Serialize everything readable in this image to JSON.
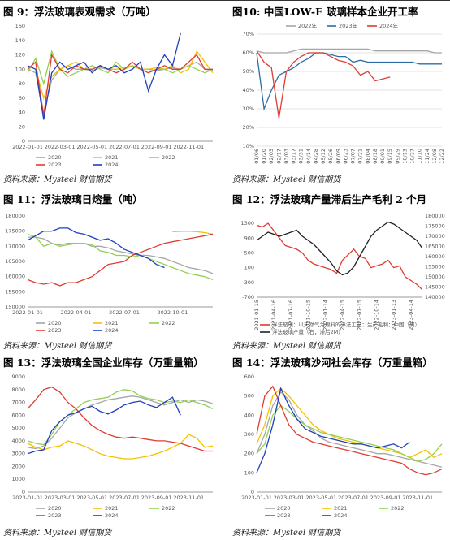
{
  "chart_data": [
    {
      "type": "line",
      "title": "图 9：浮法玻璃表观需求（万吨）",
      "source": "资料来源：Mysteel 财信期货",
      "categories": [
        "2022-01-01",
        null,
        null,
        null,
        "2022-03-01",
        null,
        null,
        null,
        "2022-05-01",
        null,
        null,
        null,
        "2022-07-01",
        null,
        null,
        null,
        "2022-09-01",
        null,
        null,
        null,
        "2022-11-01",
        null,
        null,
        null
      ],
      "ylim": [
        0,
        160
      ],
      "yticks": [
        0,
        20,
        40,
        60,
        80,
        100,
        120,
        140,
        160
      ],
      "grid": false,
      "legend": "bottom",
      "series": [
        {
          "name": "2020",
          "color": "#a6a6a6",
          "values": [
            100,
            95,
            40,
            85,
            100,
            105,
            100,
            100,
            98,
            102,
            100,
            95,
            100,
            105,
            100,
            100,
            98,
            100,
            102,
            100,
            105,
            110,
            100,
            98
          ]
        },
        {
          "name": "2021",
          "color": "#f2c200",
          "values": [
            105,
            100,
            60,
            90,
            100,
            105,
            110,
            100,
            100,
            105,
            100,
            100,
            102,
            105,
            100,
            100,
            102,
            100,
            105,
            95,
            100,
            125,
            110,
            95
          ]
        },
        {
          "name": "2022",
          "color": "#92d050",
          "values": [
            95,
            115,
            80,
            125,
            100,
            90,
            95,
            100,
            105,
            100,
            95,
            110,
            100,
            105,
            100,
            95,
            100,
            100,
            95,
            100,
            105,
            100,
            95,
            100
          ]
        },
        {
          "name": "2023",
          "color": "#e03c31",
          "values": [
            100,
            110,
            35,
            120,
            100,
            95,
            105,
            100,
            100,
            105,
            100,
            95,
            100,
            110,
            100,
            95,
            100,
            105,
            100,
            100,
            110,
            120,
            100,
            100
          ]
        },
        {
          "name": "2024",
          "color": "#1f3fbf",
          "values": [
            105,
            100,
            30,
            95,
            110,
            100,
            105,
            110,
            95,
            105,
            100,
            105,
            95,
            100,
            110,
            70,
            100,
            120,
            105,
            150,
            null,
            null,
            null,
            null
          ]
        }
      ]
    },
    {
      "type": "line",
      "title": "图10: 中国LOW-E 玻璃样本企业开工率",
      "source": "资料来源：Mysteel 财信期货",
      "categories": [
        "01/06",
        "01/20",
        "02/03",
        "02/17",
        "03/03",
        "03/17",
        "03/31",
        "04/14",
        "04/28",
        "05/12",
        "05/26",
        "06/09",
        "06/23",
        "07/07",
        "07/21",
        "08/04",
        "08/18",
        "09/01",
        "09/15",
        "09/29",
        "10/13",
        "10/27",
        "11/10",
        "11/24",
        "12/08",
        "12/22"
      ],
      "rotated_xticks": true,
      "ylim": [
        10,
        70
      ],
      "yticks": [
        {
          "value": 10,
          "label": "10%"
        },
        {
          "value": 20,
          "label": "20%"
        },
        {
          "value": 30,
          "label": "30%"
        },
        {
          "value": 40,
          "label": "40%"
        },
        {
          "value": 50,
          "label": "50%"
        },
        {
          "value": 60,
          "label": "60%"
        },
        {
          "value": 70,
          "label": "70%"
        }
      ],
      "grid": true,
      "legend": "top",
      "series": [
        {
          "name": "2022年",
          "color": "#a6a6a6",
          "values": [
            61,
            60,
            60,
            60,
            60,
            61,
            62,
            62,
            62,
            62,
            62,
            62,
            62,
            62,
            62,
            62,
            61,
            61,
            61,
            61,
            61,
            61,
            61,
            61,
            60,
            60
          ]
        },
        {
          "name": "2023年",
          "color": "#2e6da4",
          "values": [
            60,
            30,
            40,
            48,
            50,
            52,
            55,
            57,
            60,
            60,
            59,
            58,
            58,
            55,
            56,
            55,
            55,
            55,
            55,
            55,
            55,
            55,
            54,
            54,
            54,
            54
          ]
        },
        {
          "name": "2024年",
          "color": "#e03c31",
          "values": [
            61,
            55,
            52,
            25,
            50,
            55,
            58,
            60,
            60,
            60,
            58,
            56,
            55,
            53,
            48,
            50,
            45,
            46,
            47,
            null,
            null,
            null,
            null,
            null,
            null,
            null
          ]
        }
      ]
    },
    {
      "type": "line",
      "title": "图 11：浮法玻璃日熔量（吨）",
      "source": "资料来源：Mysteel 财信期货",
      "categories": [
        "2022-01-01",
        null,
        null,
        null,
        null,
        null,
        "2022-04-01",
        null,
        null,
        null,
        null,
        null,
        "2022-07-01",
        null,
        null,
        null,
        null,
        null,
        "2022-10-01",
        null,
        null,
        null,
        null,
        null
      ],
      "ylim": [
        150000,
        180000
      ],
      "yticks": [
        150000,
        155000,
        160000,
        165000,
        170000,
        175000,
        180000
      ],
      "grid": false,
      "legend": "bottom",
      "series": [
        {
          "name": "2020",
          "color": "#a6a6a6",
          "values": [
            173000,
            173000,
            172500,
            171000,
            170500,
            171000,
            171000,
            171000,
            170000,
            170000,
            169500,
            168500,
            168000,
            167500,
            167000,
            167000,
            166500,
            166000,
            165000,
            164000,
            163000,
            162500,
            162000,
            161000
          ]
        },
        {
          "name": "2021",
          "color": "#f2c200",
          "values": [
            null,
            null,
            null,
            null,
            null,
            null,
            null,
            null,
            null,
            null,
            null,
            null,
            null,
            null,
            null,
            null,
            null,
            null,
            174800,
            174900,
            175000,
            174800,
            174500,
            174000
          ]
        },
        {
          "name": "2022",
          "color": "#92d050",
          "values": [
            174000,
            173000,
            170000,
            171000,
            170000,
            170500,
            171000,
            171000,
            170500,
            168500,
            168000,
            167000,
            167000,
            166500,
            167000,
            166000,
            165000,
            164000,
            163000,
            162000,
            161000,
            160500,
            160000,
            159000
          ]
        },
        {
          "name": "2023",
          "color": "#e03c31",
          "values": [
            159000,
            158000,
            157500,
            158000,
            157000,
            158000,
            158000,
            159000,
            160000,
            162000,
            164000,
            164500,
            165000,
            167000,
            168000,
            169000,
            170000,
            171000,
            171500,
            172000,
            172500,
            173000,
            173500,
            174000
          ]
        },
        {
          "name": "2024",
          "color": "#1f3fbf",
          "values": [
            172000,
            173500,
            175000,
            175000,
            176000,
            176000,
            174500,
            174000,
            173000,
            172000,
            172500,
            171000,
            169000,
            168000,
            167000,
            166000,
            164000,
            163000,
            null,
            null,
            null,
            null,
            null,
            null
          ]
        }
      ]
    },
    {
      "type": "line",
      "title": "图 12：浮法玻璃产量滞后生产毛利 2 个月",
      "source": "资料来源：Mysteel 财信期货",
      "categories": [
        "2021-01-15",
        null,
        null,
        "2021-04-16",
        null,
        null,
        "2021-07-16",
        null,
        null,
        "2021-10-15",
        null,
        null,
        "2022-01-14",
        null,
        null,
        "2022-04-15",
        null,
        null,
        "2022-07-15",
        null,
        null,
        "2022-10-14",
        null,
        null,
        "2023-01-13",
        null,
        null,
        "2023-04-14",
        null,
        null
      ],
      "rotated_xticks": true,
      "ylim": [
        -700,
        1500
      ],
      "yticks": [
        -700,
        -300,
        100,
        500,
        900,
        1300
      ],
      "y2lim": [
        140000,
        180000
      ],
      "y2ticks": [
        140000,
        145000,
        150000,
        155000,
        160000,
        165000,
        170000,
        175000,
        180000
      ],
      "grid": false,
      "legend": "bottom-list",
      "series": [
        {
          "name": "浮法玻璃：以天然气为燃料的浮法工艺：生产毛利：中国（周）",
          "color": "#e03c31",
          "values": [
            1250,
            1200,
            1300,
            1100,
            900,
            700,
            650,
            600,
            500,
            300,
            200,
            150,
            100,
            50,
            -50,
            300,
            450,
            600,
            400,
            350,
            100,
            150,
            200,
            300,
            100,
            150,
            -150,
            -250,
            -350,
            -500
          ]
        },
        {
          "name": "浮法玻璃产量（右，滞后2M）",
          "color": "#222222",
          "axis": "y2",
          "values": [
            168000,
            170000,
            172000,
            171000,
            170000,
            171000,
            172000,
            173000,
            170000,
            168000,
            166000,
            163000,
            160000,
            157000,
            153000,
            151000,
            152000,
            155000,
            160000,
            165000,
            170000,
            173000,
            175000,
            177000,
            176000,
            174000,
            172000,
            170000,
            168000,
            164000
          ]
        }
      ]
    },
    {
      "type": "line",
      "title": "图 13：浮法玻璃全国企业库存（万重量箱）",
      "source": "资料来源：Mysteel 财信期货",
      "categories": [
        "2023-01-01",
        null,
        null,
        null,
        "2023-03-01",
        null,
        null,
        null,
        "2023-05-01",
        null,
        null,
        null,
        "2023-07-01",
        null,
        null,
        null,
        "2023-09-01",
        null,
        null,
        null,
        "2023-11-01",
        null,
        null,
        null
      ],
      "ylim": [
        0,
        9000
      ],
      "yticks": [
        0,
        1000,
        2000,
        3000,
        4000,
        5000,
        6000,
        7000,
        8000,
        9000
      ],
      "grid": false,
      "legend": "bottom",
      "series": [
        {
          "name": "2020",
          "color": "#a6a6a6",
          "values": [
            3500,
            3400,
            3600,
            4200,
            5000,
            5800,
            6200,
            6500,
            6800,
            7000,
            7200,
            7300,
            7400,
            7500,
            7400,
            7200,
            7000,
            6800,
            7000,
            7200,
            7000,
            7200,
            7100,
            6900
          ]
        },
        {
          "name": "2021",
          "color": "#f2c200",
          "values": [
            3800,
            3500,
            3300,
            3500,
            3600,
            4000,
            3800,
            3600,
            3300,
            3000,
            2800,
            2700,
            2600,
            2600,
            2700,
            2800,
            3000,
            3200,
            3500,
            3800,
            4500,
            4200,
            3500,
            3600
          ]
        },
        {
          "name": "2022",
          "color": "#92d050",
          "values": [
            4000,
            3800,
            3700,
            4500,
            5500,
            6000,
            6500,
            7000,
            7200,
            7300,
            7400,
            7800,
            8000,
            7900,
            7500,
            7300,
            7200,
            7000,
            7100,
            7000,
            7200,
            7000,
            6800,
            6500
          ]
        },
        {
          "name": "2023",
          "color": "#e03c31",
          "values": [
            6500,
            7200,
            8000,
            8200,
            7800,
            7000,
            6500,
            5800,
            5200,
            4800,
            4500,
            4300,
            4200,
            4300,
            4200,
            4100,
            4000,
            4000,
            3900,
            3800,
            3600,
            3400,
            3200,
            3200
          ]
        },
        {
          "name": "2024",
          "color": "#1f3fbf",
          "values": [
            3000,
            3200,
            3300,
            4800,
            5500,
            6000,
            6200,
            6500,
            6700,
            6300,
            6100,
            6400,
            6800,
            7000,
            7100,
            6800,
            6600,
            7000,
            7400,
            6000,
            null,
            null,
            null,
            null
          ]
        }
      ]
    },
    {
      "type": "line",
      "title": "图 14：浮法玻璃沙河社会库存（万重量箱）",
      "source": "资料来源：Mysteel 财信期货",
      "categories": [
        "2023-01-01",
        null,
        null,
        null,
        "2023-03-01",
        null,
        null,
        null,
        "2023-05-01",
        null,
        null,
        null,
        "2023-07-01",
        null,
        null,
        null,
        "2023-09-01",
        null,
        null,
        null,
        "2023-11-01",
        null,
        null,
        null
      ],
      "ylim": [
        0,
        600
      ],
      "yticks": [
        0,
        100,
        200,
        300,
        400,
        500,
        600
      ],
      "grid": false,
      "legend": "bottom",
      "series": [
        {
          "name": "2020",
          "color": "#a6a6a6",
          "values": [
            200,
            300,
            450,
            520,
            480,
            400,
            350,
            320,
            280,
            260,
            250,
            240,
            230,
            220,
            210,
            200,
            200,
            190,
            180,
            170,
            160,
            150,
            140,
            130
          ]
        },
        {
          "name": "2021",
          "color": "#f2c200",
          "values": [
            250,
            350,
            500,
            540,
            500,
            450,
            400,
            350,
            320,
            300,
            280,
            270,
            260,
            250,
            240,
            230,
            220,
            210,
            200,
            180,
            200,
            220,
            180,
            200
          ]
        },
        {
          "name": "2022",
          "color": "#92d050",
          "values": [
            200,
            250,
            400,
            450,
            420,
            380,
            350,
            330,
            310,
            300,
            290,
            280,
            270,
            260,
            250,
            240,
            230,
            220,
            200,
            180,
            160,
            170,
            200,
            250
          ]
        },
        {
          "name": "2023",
          "color": "#e03c31",
          "values": [
            300,
            500,
            550,
            450,
            350,
            300,
            280,
            260,
            250,
            240,
            230,
            220,
            210,
            200,
            190,
            180,
            170,
            160,
            150,
            120,
            100,
            90,
            100,
            120
          ]
        },
        {
          "name": "2024",
          "color": "#1f3fbf",
          "values": [
            100,
            200,
            350,
            540,
            450,
            380,
            330,
            310,
            290,
            280,
            270,
            260,
            250,
            250,
            240,
            230,
            240,
            250,
            230,
            260,
            null,
            null,
            null,
            null
          ]
        }
      ]
    }
  ]
}
